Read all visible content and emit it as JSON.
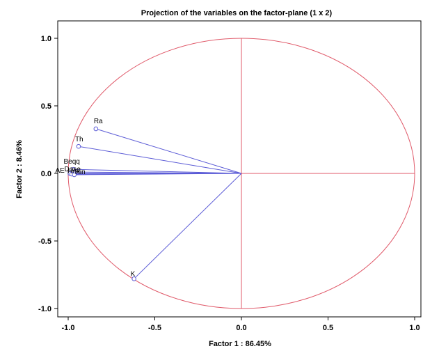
{
  "chart_data": {
    "type": "scatter",
    "title": "Projection of the variables on the factor-plane (1 x 2)",
    "xlabel": "Factor 1 : 86.45%",
    "ylabel": "Factor 2 : 8.46%",
    "xlim": [
      -1.05,
      1.05
    ],
    "ylim": [
      -1.1,
      1.1
    ],
    "xticks": [
      "-1.0",
      "-0.5",
      "0.0",
      "0.5",
      "1.0"
    ],
    "yticks": [
      "1.0",
      "0.5",
      "0.0",
      "-0.5",
      "-1.0"
    ],
    "unit_circle": true,
    "grid": false,
    "colors": {
      "vectors": "#5b5bd6",
      "circle": "#e05a6a",
      "axes": "#e05a6a"
    },
    "points": [
      {
        "label": "Ra",
        "x": -0.84,
        "y": 0.33
      },
      {
        "label": "Th",
        "x": -0.94,
        "y": 0.2
      },
      {
        "label": "Beqq",
        "x": -0.97,
        "y": 0.03
      },
      {
        "label": "AE",
        "x": -0.99,
        "y": 0.0
      },
      {
        "label": "Dose",
        "x": -0.97,
        "y": 0.01
      },
      {
        "label": "Hex",
        "x": -0.98,
        "y": -0.005
      },
      {
        "label": "Hin",
        "x": -0.965,
        "y": -0.01
      },
      {
        "label": "K",
        "x": -0.62,
        "y": -0.78
      }
    ]
  }
}
